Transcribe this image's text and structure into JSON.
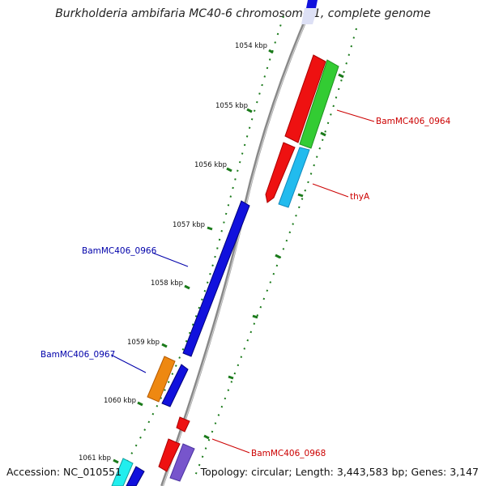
{
  "title": "Burkholderia ambifaria MC40-6 chromosome 1, complete genome",
  "footer": {
    "accession": "Accession: NC_010551",
    "summary": "Topology: circular; Length: 3,443,583 bp; Genes: 3,147"
  },
  "ticks": [
    "1054 kbp",
    "1055 kbp",
    "1056 kbp",
    "1057 kbp",
    "1058 kbp",
    "1059 kbp",
    "1060 kbp",
    "1061 kbp"
  ],
  "colors": {
    "red": "#ee1111",
    "green": "#33cc33",
    "cyan": "#22bbee",
    "blue": "#1111dd",
    "orange": "#ee8811",
    "purple": "#7755cc",
    "label_red": "#cc0000",
    "label_blue": "#0000aa",
    "tick_green": "#1a7a1a"
  },
  "gene_labels": [
    {
      "text": "BamMC406_0964",
      "color": "red"
    },
    {
      "text": "thyA",
      "color": "red"
    },
    {
      "text": "BamMC406_0966",
      "color": "blue"
    },
    {
      "text": "BamMC406_0967",
      "color": "blue"
    },
    {
      "text": "BamMC406_0968",
      "color": "red"
    }
  ]
}
